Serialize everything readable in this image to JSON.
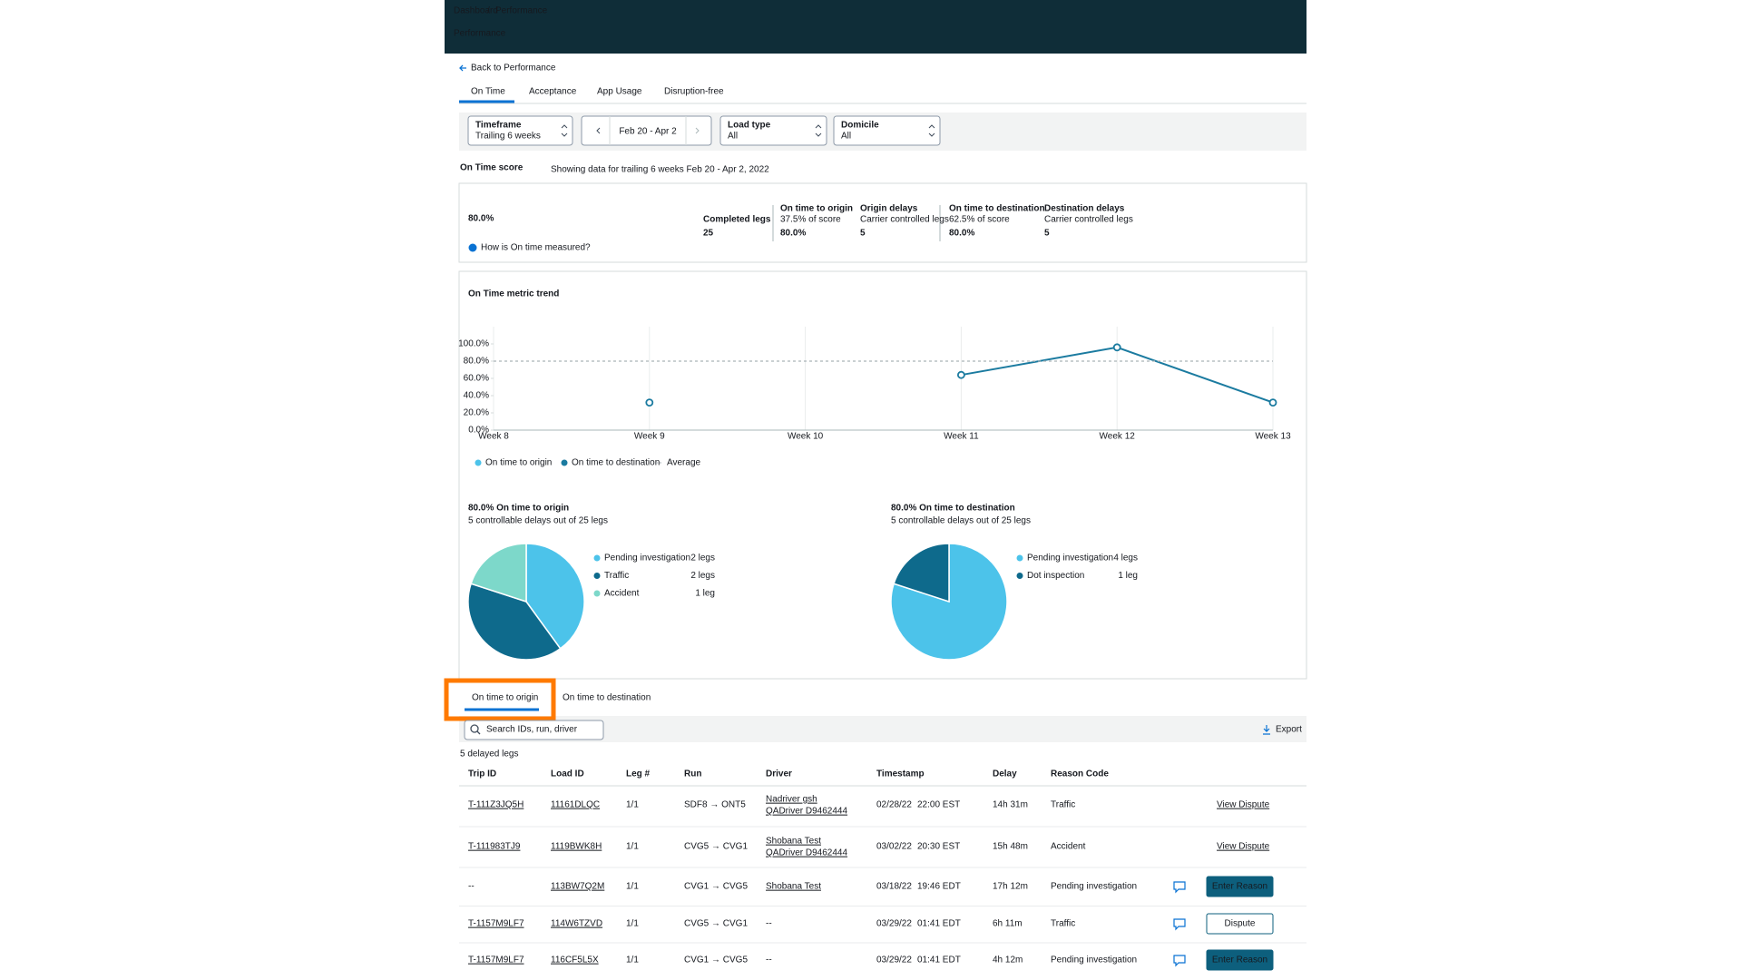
{
  "header": {
    "breadcrumb": [
      "Dashboard",
      "Performance"
    ],
    "separator": "/",
    "title": "Performance"
  },
  "back_link": "Back to Performance",
  "tabs": [
    "On Time",
    "Acceptance",
    "App Usage",
    "Disruption-free"
  ],
  "filters": {
    "timeframe": {
      "label": "Timeframe",
      "value": "Trailing 6 weeks"
    },
    "date_range": "Feb 20 - Apr 2",
    "load_type": {
      "label": "Load type",
      "value": "All"
    },
    "domicile": {
      "label": "Domicile",
      "value": "All"
    }
  },
  "score": {
    "title": "On Time score",
    "subtitle": "Showing data for trailing 6 weeks Feb 20 - Apr 2, 2022",
    "value": "80.0%",
    "help": "How is On time measured?",
    "metrics": [
      {
        "label": "Completed legs",
        "value": "25"
      },
      {
        "label": "On time to origin",
        "note": "37.5% of score",
        "value": "80.0%"
      },
      {
        "label": "Origin delays",
        "note": "Carrier controlled legs",
        "value": "5"
      },
      {
        "label": "On time to destination",
        "note": "62.5% of score",
        "value": "80.0%"
      },
      {
        "label": "Destination delays",
        "note": "Carrier controlled legs",
        "value": "5"
      }
    ]
  },
  "chart_data": [
    {
      "type": "line",
      "title": "On Time metric trend",
      "categories": [
        "Week 8",
        "Week 9",
        "Week 10",
        "Week 11",
        "Week 12",
        "Week 13"
      ],
      "series": [
        {
          "name": "On time to origin",
          "color": "#4cc3ea",
          "values": [
            null,
            null,
            null,
            null,
            null,
            null
          ]
        },
        {
          "name": "On time to destination",
          "color": "#1b7ba0",
          "values": [
            null,
            32,
            null,
            64,
            96,
            32
          ]
        },
        {
          "name": "Average",
          "color": "#aab3b8",
          "dashed": true,
          "values": [
            80,
            80,
            80,
            80,
            80,
            80
          ]
        }
      ],
      "ylim": [
        0,
        120
      ],
      "yticks": [
        {
          "value": 0,
          "label": "0.0%"
        },
        {
          "value": 20,
          "label": "20.0%"
        },
        {
          "value": 40,
          "label": "40.0%"
        },
        {
          "value": 60,
          "label": "60.0%"
        },
        {
          "value": 80,
          "label": "80.0%"
        },
        {
          "value": 100,
          "label": "100.0%"
        }
      ],
      "grid": true,
      "legend": "bottom"
    },
    {
      "type": "pie",
      "title": "80.0% On time to origin",
      "subtitle": "5 controllable delays out of 25 legs",
      "categories": [
        "Pending investigation",
        "Traffic",
        "Accident"
      ],
      "values": [
        2,
        2,
        1
      ],
      "value_labels": [
        "2 legs",
        "2 legs",
        "1 leg"
      ],
      "colors": [
        "#4cc3ea",
        "#0e6a8c",
        "#7dd8ca"
      ]
    },
    {
      "type": "pie",
      "title": "80.0% On time to destination",
      "subtitle": "5 controllable delays out of 25 legs",
      "categories": [
        "Pending investigation",
        "Dot inspection"
      ],
      "values": [
        4,
        1
      ],
      "value_labels": [
        "4 legs",
        "1 leg"
      ],
      "colors": [
        "#4cc3ea",
        "#0e6a8c"
      ]
    }
  ],
  "table": {
    "tabs": [
      "On time to origin",
      "On time to destination"
    ],
    "search_placeholder": "Search IDs, run, driver",
    "export": "Export",
    "count": "5 delayed legs",
    "columns": [
      "Trip ID",
      "Load ID",
      "Leg #",
      "Run",
      "Driver",
      "Timestamp",
      "Delay",
      "Reason Code"
    ],
    "rows": [
      {
        "trip_id": "T-111Z3JQ5H",
        "load_id": "11161DLQC",
        "leg": "1/1",
        "run": "SDF8 → ONT5",
        "driver": [
          "Nadriver gsh",
          "QADriver D9462444"
        ],
        "date": "02/28/22",
        "time": "22:00 EST",
        "delay": "14h 31m",
        "reason": "Traffic",
        "action": "View Dispute",
        "action_style": "link",
        "comment": false
      },
      {
        "trip_id": "T-111983TJ9",
        "load_id": "1119BWK8H",
        "leg": "1/1",
        "run": "CVG5 → CVG1",
        "driver": [
          "Shobana Test",
          "QADriver D9462444"
        ],
        "date": "03/02/22",
        "time": "20:30 EST",
        "delay": "15h 48m",
        "reason": "Accident",
        "action": "View Dispute",
        "action_style": "link",
        "comment": false
      },
      {
        "trip_id": "--",
        "load_id": "113BW7Q2M",
        "leg": "1/1",
        "run": "CVG1 → CVG5",
        "driver": [
          "Shobana Test"
        ],
        "date": "03/18/22",
        "time": "19:46 EDT",
        "delay": "17h 12m",
        "reason": "Pending investigation",
        "action": "Enter Reason",
        "action_style": "primary",
        "comment": true
      },
      {
        "trip_id": "T-1157M9LF7",
        "load_id": "114W6TZVD",
        "leg": "1/1",
        "run": "CVG5 → CVG1",
        "driver": [
          "--"
        ],
        "date": "03/29/22",
        "time": "01:41 EDT",
        "delay": "6h 11m",
        "reason": "Traffic",
        "action": "Dispute",
        "action_style": "secondary",
        "comment": true
      },
      {
        "trip_id": "T-1157M9LF7",
        "load_id": "116CF5L5X",
        "leg": "1/1",
        "run": "CVG1 → CVG5",
        "driver": [
          "--"
        ],
        "date": "03/29/22",
        "time": "01:41 EDT",
        "delay": "4h 12m",
        "reason": "Pending investigation",
        "action": "Enter Reason",
        "action_style": "primary",
        "comment": true
      }
    ]
  }
}
